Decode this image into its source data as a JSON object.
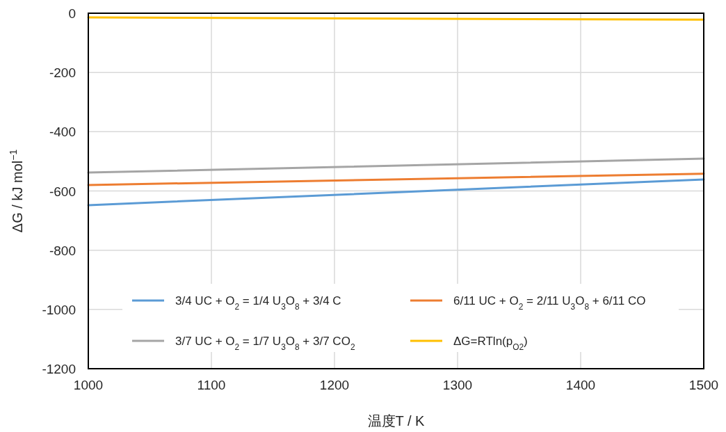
{
  "chart_data": {
    "type": "line",
    "xlabel": "温度T / K",
    "ylabel": "ΔG / kJ mol$^{−1}$",
    "x": [
      1000,
      1500
    ],
    "series": [
      {
        "name": "3/4 UC + O$_{2}$ = 1/4 U$_{3}$O$_{8}$ + 3/4 C",
        "color": "#5b9bd5",
        "values": [
          -648,
          -561
        ]
      },
      {
        "name": "6/11 UC + O$_{2}$ = 2/11 U$_{3}$O$_{8}$ + 6/11 CO",
        "color": "#ed7d31",
        "values": [
          -580,
          -542
        ]
      },
      {
        "name": "3/7 UC + O$_{2}$ = 1/7 U$_{3}$O$_{8}$ + 3/7 CO$_{2}$",
        "color": "#a5a5a5",
        "values": [
          -538,
          -491
        ]
      },
      {
        "name": "ΔG=RTln(p$_{O2}$)",
        "color": "#ffc000",
        "values": [
          -14,
          -22
        ]
      }
    ],
    "xlim": [
      1000,
      1500
    ],
    "xticks": [
      1000,
      1100,
      1200,
      1300,
      1400,
      1500
    ],
    "ylim": [
      -1200,
      0
    ],
    "yticks": [
      -1200,
      -1000,
      -800,
      -600,
      -400,
      -200,
      0
    ],
    "grid": true,
    "legend": "bottom",
    "marker": "none",
    "line_style": "solid"
  }
}
